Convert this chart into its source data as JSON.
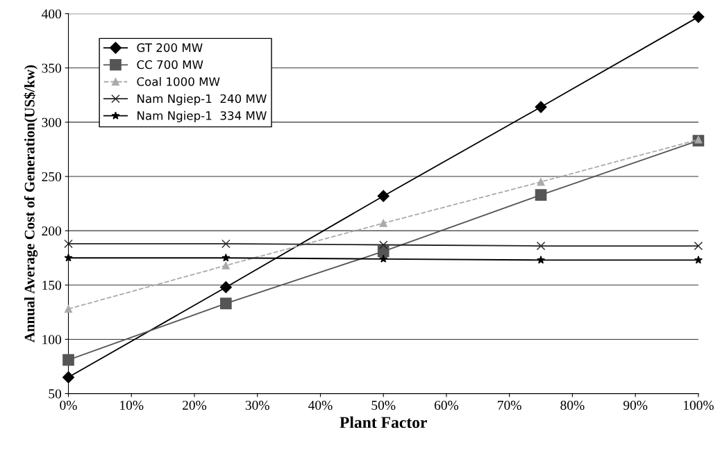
{
  "chart_data": {
    "type": "line",
    "xlabel": "Plant Factor",
    "ylabel": "Annual Average Cost of Generation(US$/kw)",
    "x": [
      0,
      25,
      50,
      75,
      100
    ],
    "series": [
      {
        "name": "GT 200 MW",
        "color": "#000000",
        "marker": "diamond",
        "values": [
          65,
          148,
          232,
          314,
          397
        ]
      },
      {
        "name": "CC 700 MW",
        "color": "#555555",
        "marker": "square",
        "values": [
          81,
          133,
          181,
          233,
          283
        ]
      },
      {
        "name": "Coal 1000 MW",
        "color": "#aaaaaa",
        "marker": "triangle",
        "line_style": "dashed",
        "values": [
          128,
          168,
          207,
          245,
          284
        ]
      },
      {
        "name": "Nam Ngiep-1  240 MW",
        "color": "#222222",
        "marker": "cross",
        "values": [
          188,
          188,
          187,
          186,
          186
        ]
      },
      {
        "name": "Nam Ngiep-1  334 MW",
        "color": "#000000",
        "marker": "star",
        "values": [
          175,
          175,
          174,
          173,
          173
        ]
      }
    ],
    "xlim": [
      0,
      100
    ],
    "xticks": [
      {
        "value": 0,
        "label": "0%"
      },
      {
        "value": 10,
        "label": "10%"
      },
      {
        "value": 20,
        "label": "20%"
      },
      {
        "value": 30,
        "label": "30%"
      },
      {
        "value": 40,
        "label": "40%"
      },
      {
        "value": 50,
        "label": "50%"
      },
      {
        "value": 60,
        "label": "60%"
      },
      {
        "value": 70,
        "label": "70%"
      },
      {
        "value": 80,
        "label": "80%"
      },
      {
        "value": 90,
        "label": "90%"
      },
      {
        "value": 100,
        "label": "100%"
      }
    ],
    "ylim": [
      50,
      400
    ],
    "yticks": [
      50,
      100,
      150,
      200,
      250,
      300,
      350,
      400
    ],
    "grid": "y",
    "legend": "top left"
  }
}
